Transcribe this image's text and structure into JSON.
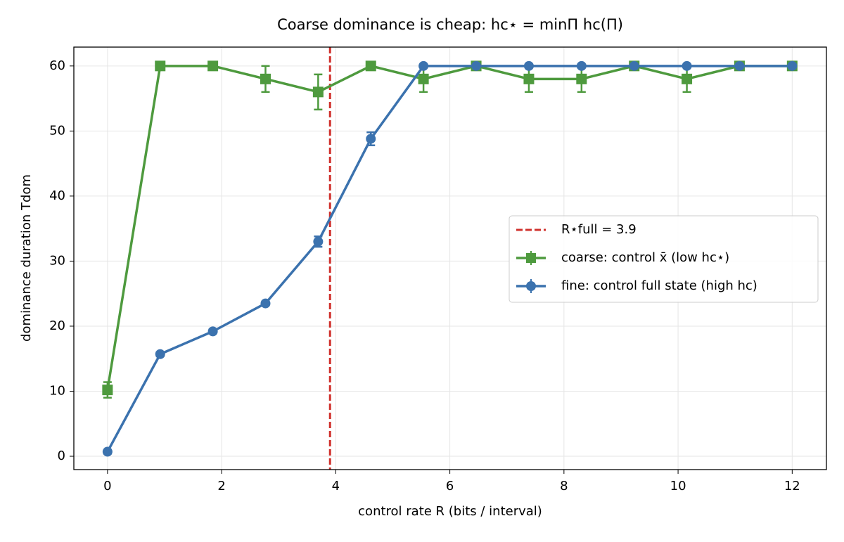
{
  "chart_data": {
    "type": "line",
    "title": "Coarse dominance is cheap: hc⋆ = minΠ hc(Π)",
    "xlabel": "control rate R (bits / interval)",
    "ylabel": "dominance duration Tdom",
    "x": [
      0,
      0.923,
      1.846,
      2.769,
      3.692,
      4.615,
      5.538,
      6.462,
      7.385,
      8.308,
      9.231,
      10.154,
      11.077,
      12
    ],
    "series": [
      {
        "name": "coarse: control x̄ (low hc⋆)",
        "color": "#4e9a3e",
        "marker": "square",
        "values": [
          10.2,
          60,
          60,
          58,
          56,
          60,
          58,
          60,
          58,
          58,
          60,
          58,
          60,
          60
        ],
        "errors": [
          1.2,
          0,
          0,
          2,
          2.7,
          0,
          2,
          0,
          2,
          2,
          0,
          2,
          0,
          0
        ]
      },
      {
        "name": "fine: control full state (high hc)",
        "color": "#3b72ae",
        "marker": "circle",
        "values": [
          0.7,
          15.7,
          19.2,
          23.5,
          33.0,
          48.8,
          60,
          60,
          60,
          60,
          60,
          60,
          60,
          60
        ],
        "errors": [
          0.3,
          0.3,
          0.3,
          0.3,
          0.8,
          1.0,
          0,
          0,
          0,
          0,
          0,
          0,
          0,
          0
        ]
      }
    ],
    "vline": {
      "x": 3.9,
      "name": "R⋆full = 3.9",
      "color": "#d0312d"
    },
    "xlim": [
      -0.59,
      12.6
    ],
    "ylim": [
      -2.05,
      62.9
    ],
    "xticks": [
      0,
      2,
      4,
      6,
      8,
      10,
      12
    ],
    "yticks": [
      0,
      10,
      20,
      30,
      40,
      50,
      60
    ],
    "grid": true,
    "legend": "center right"
  }
}
